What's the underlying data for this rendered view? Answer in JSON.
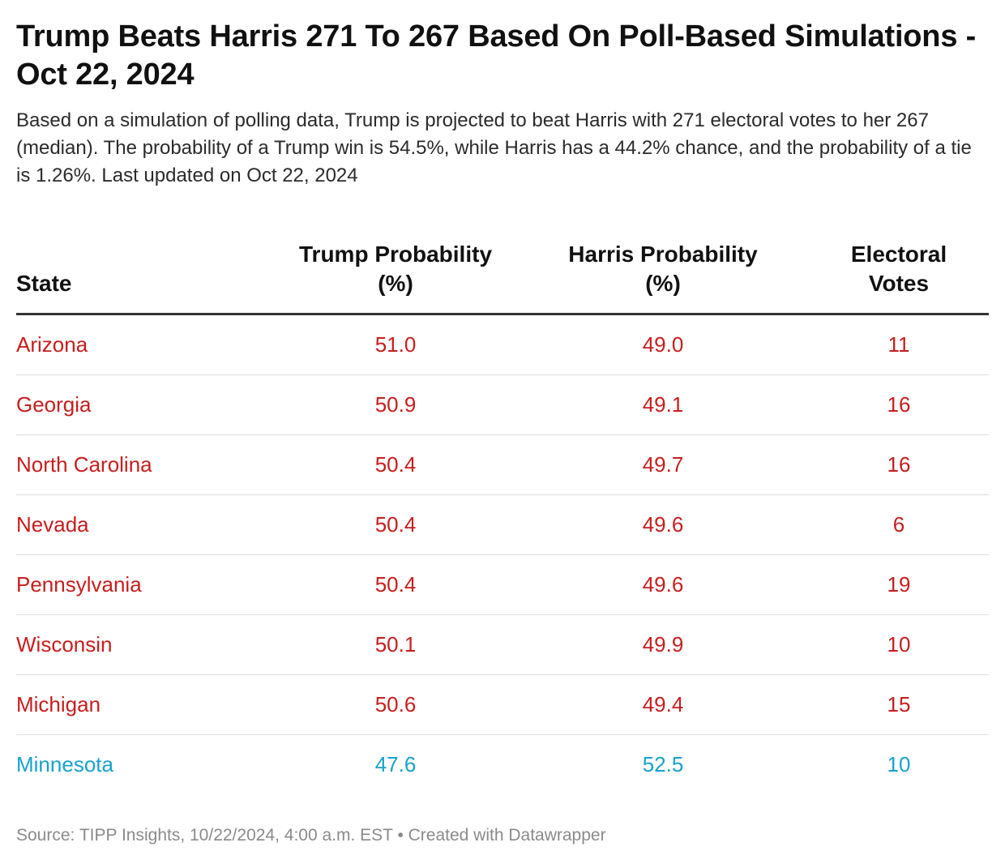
{
  "title": "Trump Beats Harris 271 To 267 Based On Poll-Based Simulations - Oct 22, 2024",
  "subtitle": "Based on a simulation of polling data, Trump is projected to beat Harris with 271 electoral votes to her 267 (median). The probability of a Trump win is 54.5%, while Harris has a 44.2% chance, and the probability of a tie is 1.26%. Last updated on Oct 22, 2024",
  "colors": {
    "trump_lean": "#c71e1d",
    "harris_lean": "#18a1cd",
    "header_rule": "#333333"
  },
  "chart_data": {
    "type": "table",
    "columns": [
      "State",
      "Trump Probability (%)",
      "Harris Probability (%)",
      "Electoral Votes"
    ],
    "rows": [
      {
        "state": "Arizona",
        "trump": "51.0",
        "harris": "49.0",
        "ev": "11",
        "lean": "trump"
      },
      {
        "state": "Georgia",
        "trump": "50.9",
        "harris": "49.1",
        "ev": "16",
        "lean": "trump"
      },
      {
        "state": "North Carolina",
        "trump": "50.4",
        "harris": "49.7",
        "ev": "16",
        "lean": "trump"
      },
      {
        "state": "Nevada",
        "trump": "50.4",
        "harris": "49.6",
        "ev": "6",
        "lean": "trump"
      },
      {
        "state": "Pennsylvania",
        "trump": "50.4",
        "harris": "49.6",
        "ev": "19",
        "lean": "trump"
      },
      {
        "state": "Wisconsin",
        "trump": "50.1",
        "harris": "49.9",
        "ev": "10",
        "lean": "trump"
      },
      {
        "state": "Michigan",
        "trump": "50.6",
        "harris": "49.4",
        "ev": "15",
        "lean": "trump"
      },
      {
        "state": "Minnesota",
        "trump": "47.6",
        "harris": "52.5",
        "ev": "10",
        "lean": "harris"
      }
    ]
  },
  "footer": "Source: TIPP Insights, 10/22/2024, 4:00 a.m. EST • Created with Datawrapper"
}
